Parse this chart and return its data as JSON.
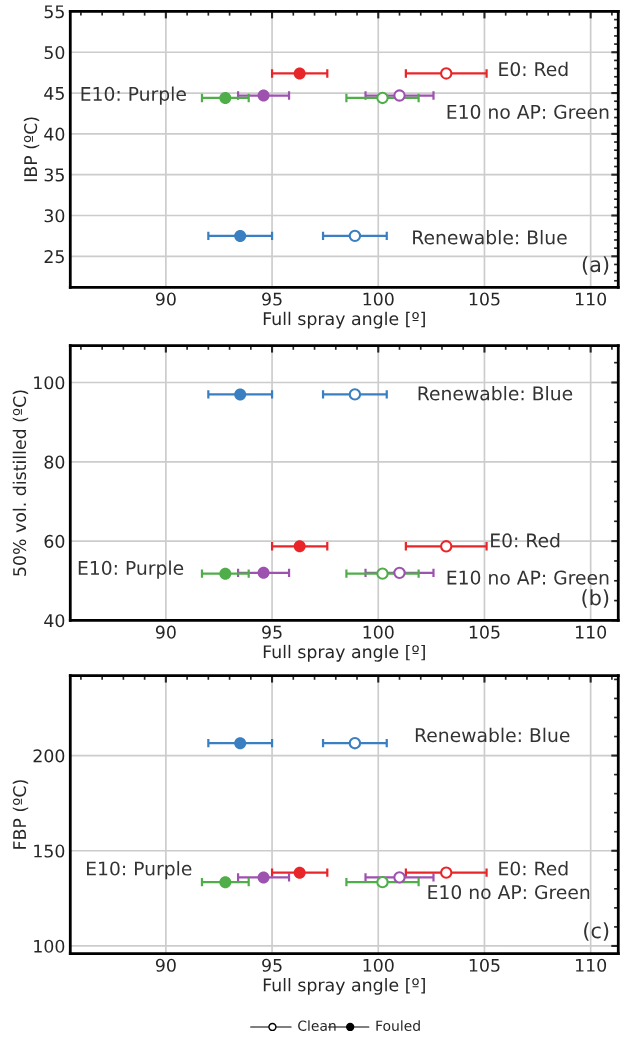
{
  "chart_data": [
    {
      "type": "scatter",
      "xlabel": "Full spray angle [º]",
      "ylabel": "IBP (ºC)",
      "xlim": [
        85.5,
        111.3
      ],
      "ylim": [
        21.2,
        55
      ],
      "xticks": [
        {
          "value": 86,
          "label": null
        },
        {
          "value": 87,
          "label": null
        },
        {
          "value": 88,
          "label": null
        },
        {
          "value": 89,
          "label": null
        },
        90,
        {
          "value": 91,
          "label": null
        },
        {
          "value": 92,
          "label": null
        },
        {
          "value": 93,
          "label": null
        },
        {
          "value": 94,
          "label": null
        },
        95,
        {
          "value": 96,
          "label": null
        },
        {
          "value": 97,
          "label": null
        },
        {
          "value": 98,
          "label": null
        },
        {
          "value": 99,
          "label": null
        },
        100,
        {
          "value": 101,
          "label": null
        },
        {
          "value": 102,
          "label": null
        },
        {
          "value": 103,
          "label": null
        },
        {
          "value": 104,
          "label": null
        },
        105,
        {
          "value": 106,
          "label": null
        },
        {
          "value": 107,
          "label": null
        },
        {
          "value": 108,
          "label": null
        },
        {
          "value": 109,
          "label": null
        },
        110,
        {
          "value": 111,
          "label": null
        }
      ],
      "yticks": [
        {
          "value": 22,
          "label": null
        },
        {
          "value": 23,
          "label": null
        },
        {
          "value": 24,
          "label": null
        },
        25,
        {
          "value": 26,
          "label": null
        },
        {
          "value": 27,
          "label": null
        },
        {
          "value": 28,
          "label": null
        },
        {
          "value": 29,
          "label": null
        },
        30,
        {
          "value": 31,
          "label": null
        },
        {
          "value": 32,
          "label": null
        },
        {
          "value": 33,
          "label": null
        },
        {
          "value": 34,
          "label": null
        },
        35,
        {
          "value": 36,
          "label": null
        },
        {
          "value": 37,
          "label": null
        },
        {
          "value": 38,
          "label": null
        },
        {
          "value": 39,
          "label": null
        },
        40,
        {
          "value": 41,
          "label": null
        },
        {
          "value": 42,
          "label": null
        },
        {
          "value": 43,
          "label": null
        },
        {
          "value": 44,
          "label": null
        },
        45,
        {
          "value": 46,
          "label": null
        },
        {
          "value": 47,
          "label": null
        },
        {
          "value": 48,
          "label": null
        },
        {
          "value": 49,
          "label": null
        },
        50,
        {
          "value": 51,
          "label": null
        },
        {
          "value": 52,
          "label": null
        },
        {
          "value": 53,
          "label": null
        },
        {
          "value": 54,
          "label": null
        },
        55
      ],
      "grid": true,
      "marker": "circle",
      "series": [
        {
          "x": [
            103.2,
            101.0,
            100.2,
            98.9
          ],
          "values": [
            47.4,
            44.7,
            44.4,
            27.5
          ],
          "xerrors": [
            1.9,
            1.6,
            1.7,
            1.5
          ],
          "colors": [
            "#e8262a",
            "#9e52b0",
            "#4fae4a",
            "#3a7fc1"
          ]
        },
        {
          "x": [
            96.3,
            94.6,
            92.8,
            93.5
          ],
          "values": [
            47.4,
            44.7,
            44.4,
            27.5
          ],
          "xerrors": [
            1.3,
            1.2,
            1.1,
            1.5
          ],
          "colors": [
            "#e8262a",
            "#9e52b0",
            "#4fae4a",
            "#3a7fc1"
          ]
        }
      ],
      "annotations": [
        "E0: Red",
        "E10: Purple",
        "E10 no AP: Green",
        "Renewable: Blue",
        "(a)"
      ]
    },
    {
      "type": "scatter",
      "xlabel": "Full spray angle [º]",
      "ylabel": "50% vol. distilled (ºC)",
      "xlim": [
        85.5,
        111.3
      ],
      "ylim": [
        40,
        109.3
      ],
      "xticks": [
        {
          "value": 86,
          "label": null
        },
        {
          "value": 87,
          "label": null
        },
        {
          "value": 88,
          "label": null
        },
        {
          "value": 89,
          "label": null
        },
        90,
        {
          "value": 91,
          "label": null
        },
        {
          "value": 92,
          "label": null
        },
        {
          "value": 93,
          "label": null
        },
        {
          "value": 94,
          "label": null
        },
        95,
        {
          "value": 96,
          "label": null
        },
        {
          "value": 97,
          "label": null
        },
        {
          "value": 98,
          "label": null
        },
        {
          "value": 99,
          "label": null
        },
        100,
        {
          "value": 101,
          "label": null
        },
        {
          "value": 102,
          "label": null
        },
        {
          "value": 103,
          "label": null
        },
        {
          "value": 104,
          "label": null
        },
        105,
        {
          "value": 106,
          "label": null
        },
        {
          "value": 107,
          "label": null
        },
        {
          "value": 108,
          "label": null
        },
        {
          "value": 109,
          "label": null
        },
        110,
        {
          "value": 111,
          "label": null
        }
      ],
      "yticks": [
        40,
        {
          "value": 45,
          "label": null
        },
        {
          "value": 50,
          "label": null
        },
        {
          "value": 55,
          "label": null
        },
        60,
        {
          "value": 65,
          "label": null
        },
        {
          "value": 70,
          "label": null
        },
        {
          "value": 75,
          "label": null
        },
        80,
        {
          "value": 85,
          "label": null
        },
        {
          "value": 90,
          "label": null
        },
        {
          "value": 95,
          "label": null
        },
        100,
        {
          "value": 105,
          "label": null
        }
      ],
      "grid": true,
      "marker": "circle",
      "series": [
        {
          "x": [
            103.2,
            101.0,
            100.2,
            98.9
          ],
          "values": [
            58.7,
            52.0,
            51.8,
            97.0
          ],
          "xerrors": [
            1.9,
            1.6,
            1.7,
            1.5
          ],
          "colors": [
            "#e8262a",
            "#9e52b0",
            "#4fae4a",
            "#3a7fc1"
          ]
        },
        {
          "x": [
            96.3,
            94.6,
            92.8,
            93.5
          ],
          "values": [
            58.7,
            52.0,
            51.8,
            97.0
          ],
          "xerrors": [
            1.3,
            1.2,
            1.1,
            1.5
          ],
          "colors": [
            "#e8262a",
            "#9e52b0",
            "#4fae4a",
            "#3a7fc1"
          ]
        }
      ],
      "annotations": [
        "Renewable: Blue",
        "E0: Red",
        "E10: Purple",
        "E10 no AP: Green",
        "(b)"
      ]
    },
    {
      "type": "scatter",
      "xlabel": "Full spray angle [º]",
      "ylabel": "FBP (ºC)",
      "xlim": [
        85.5,
        111.3
      ],
      "ylim": [
        96,
        242
      ],
      "xticks": [
        {
          "value": 86,
          "label": null
        },
        {
          "value": 87,
          "label": null
        },
        {
          "value": 88,
          "label": null
        },
        {
          "value": 89,
          "label": null
        },
        90,
        {
          "value": 91,
          "label": null
        },
        {
          "value": 92,
          "label": null
        },
        {
          "value": 93,
          "label": null
        },
        {
          "value": 94,
          "label": null
        },
        95,
        {
          "value": 96,
          "label": null
        },
        {
          "value": 97,
          "label": null
        },
        {
          "value": 98,
          "label": null
        },
        {
          "value": 99,
          "label": null
        },
        100,
        {
          "value": 101,
          "label": null
        },
        {
          "value": 102,
          "label": null
        },
        {
          "value": 103,
          "label": null
        },
        {
          "value": 104,
          "label": null
        },
        105,
        {
          "value": 106,
          "label": null
        },
        {
          "value": 107,
          "label": null
        },
        {
          "value": 108,
          "label": null
        },
        {
          "value": 109,
          "label": null
        },
        110,
        {
          "value": 111,
          "label": null
        }
      ],
      "yticks": [
        100,
        {
          "value": 110,
          "label": null
        },
        {
          "value": 120,
          "label": null
        },
        {
          "value": 130,
          "label": null
        },
        {
          "value": 140,
          "label": null
        },
        150,
        {
          "value": 160,
          "label": null
        },
        {
          "value": 170,
          "label": null
        },
        {
          "value": 180,
          "label": null
        },
        {
          "value": 190,
          "label": null
        },
        200,
        {
          "value": 210,
          "label": null
        },
        {
          "value": 220,
          "label": null
        },
        {
          "value": 230,
          "label": null
        },
        {
          "value": 240,
          "label": null
        }
      ],
      "grid": true,
      "marker": "circle",
      "series": [
        {
          "x": [
            103.2,
            101.0,
            100.2,
            98.9
          ],
          "values": [
            138.5,
            136.0,
            133.5,
            206.5
          ],
          "xerrors": [
            1.9,
            1.6,
            1.7,
            1.5
          ],
          "colors": [
            "#e8262a",
            "#9e52b0",
            "#4fae4a",
            "#3a7fc1"
          ]
        },
        {
          "x": [
            96.3,
            94.6,
            92.8,
            93.5
          ],
          "values": [
            138.5,
            136.0,
            133.5,
            206.5
          ],
          "xerrors": [
            1.3,
            1.2,
            1.1,
            1.5
          ],
          "colors": [
            "#e8262a",
            "#9e52b0",
            "#4fae4a",
            "#3a7fc1"
          ]
        }
      ],
      "annotations": [
        "Renewable: Blue",
        "E10: Purple",
        "E0: Red",
        "E10 no AP: Green",
        "(c)",
        "Clean",
        "Fouled"
      ]
    }
  ]
}
